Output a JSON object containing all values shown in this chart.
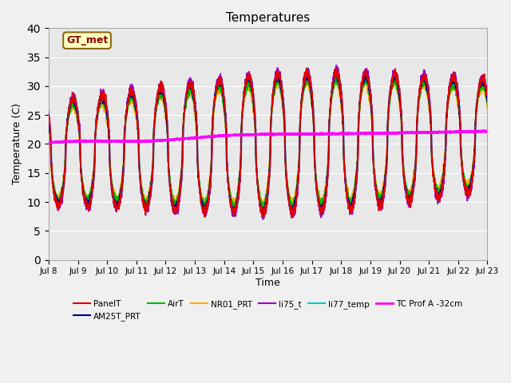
{
  "title": "Temperatures",
  "xlabel": "Time",
  "ylabel": "Temperature (C)",
  "ylim": [
    0,
    40
  ],
  "yticks": [
    0,
    5,
    10,
    15,
    20,
    25,
    30,
    35,
    40
  ],
  "x_tick_labels": [
    "Jul 8",
    "Jul 9",
    "Jul 10",
    "Jul 11",
    "Jul 12",
    "Jul 13",
    "Jul 14",
    "Jul 15",
    "Jul 16",
    "Jul 17",
    "Jul 18",
    "Jul 19",
    "Jul 20",
    "Jul 21",
    "Jul 22",
    "Jul 23"
  ],
  "annotation_text": "GT_met",
  "annotation_box_color": "#ffffc0",
  "annotation_text_color": "#8b0000",
  "annotation_border_color": "#8b6914",
  "series": {
    "PanelT": {
      "color": "#dd0000",
      "lw": 1.2
    },
    "AM25T_PRT": {
      "color": "#00008b",
      "lw": 1.2
    },
    "AirT": {
      "color": "#00bb00",
      "lw": 1.2
    },
    "NR01_PRT": {
      "color": "#ffaa00",
      "lw": 1.2
    },
    "li75_t": {
      "color": "#9900cc",
      "lw": 1.2
    },
    "li77_temp": {
      "color": "#00cccc",
      "lw": 1.2
    },
    "TC Prof A -32cm": {
      "color": "#ff00ff",
      "lw": 2.0
    }
  },
  "bg_color": "#e8e8e8",
  "fig_bg_color": "#f0f0f0",
  "grid_color": "#ffffff",
  "num_points": 3000
}
